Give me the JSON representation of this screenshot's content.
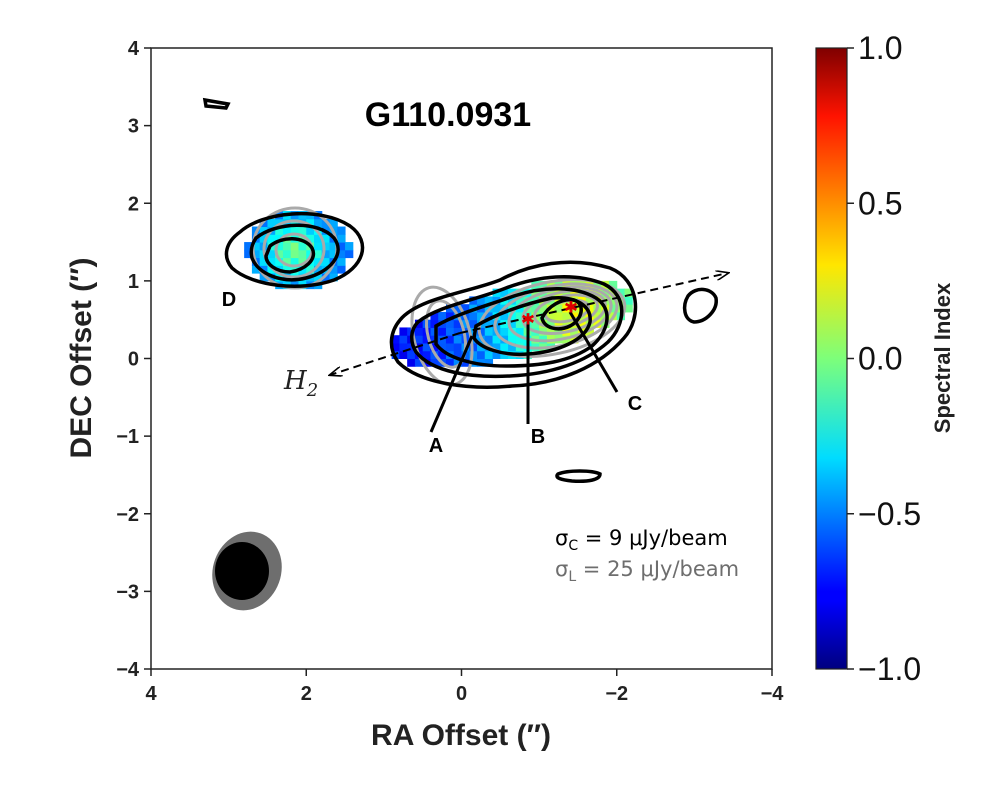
{
  "chart_data": {
    "type": "heatmap",
    "title": "G110.0931",
    "xlabel": "RA Offset (″)",
    "ylabel": "DEC Offset (″)",
    "xlim": [
      4,
      -4
    ],
    "ylim": [
      -4,
      4
    ],
    "x_ticks": [
      "4",
      "2",
      "0",
      "−2",
      "−4"
    ],
    "y_ticks": [
      "4",
      "3",
      "2",
      "1",
      "0",
      "−1",
      "−2",
      "−3",
      "−4"
    ],
    "colorbar": {
      "label": "Spectral Index",
      "range": [
        -1.0,
        1.0
      ],
      "ticks": [
        "1.0",
        "0.5",
        "0.0",
        "−0.5",
        "−1.0"
      ],
      "colormap": "jet"
    },
    "sources": [
      {
        "label": "D",
        "x": 2.2,
        "y": 1.35
      },
      {
        "label": "A",
        "x": 0.0,
        "y": 0.3
      },
      {
        "label": "B",
        "x": -0.85,
        "y": 0.5
      },
      {
        "label": "C",
        "x": -1.45,
        "y": 0.65
      }
    ],
    "outflow_label": "H",
    "outflow_subscript": "2",
    "annotations": {
      "sigma_c": "σ",
      "sigma_c_sub": "C",
      "sigma_c_val": " = 9 μJy/beam",
      "sigma_l": "σ",
      "sigma_l_sub": "L",
      "sigma_l_val": " = 25 μJy/beam"
    },
    "colors": {
      "contour_c": "#000000",
      "contour_l": "#aaaaaa",
      "beam_c": "#000000",
      "beam_l": "#6e6e6e",
      "stars": "#e00000"
    }
  }
}
